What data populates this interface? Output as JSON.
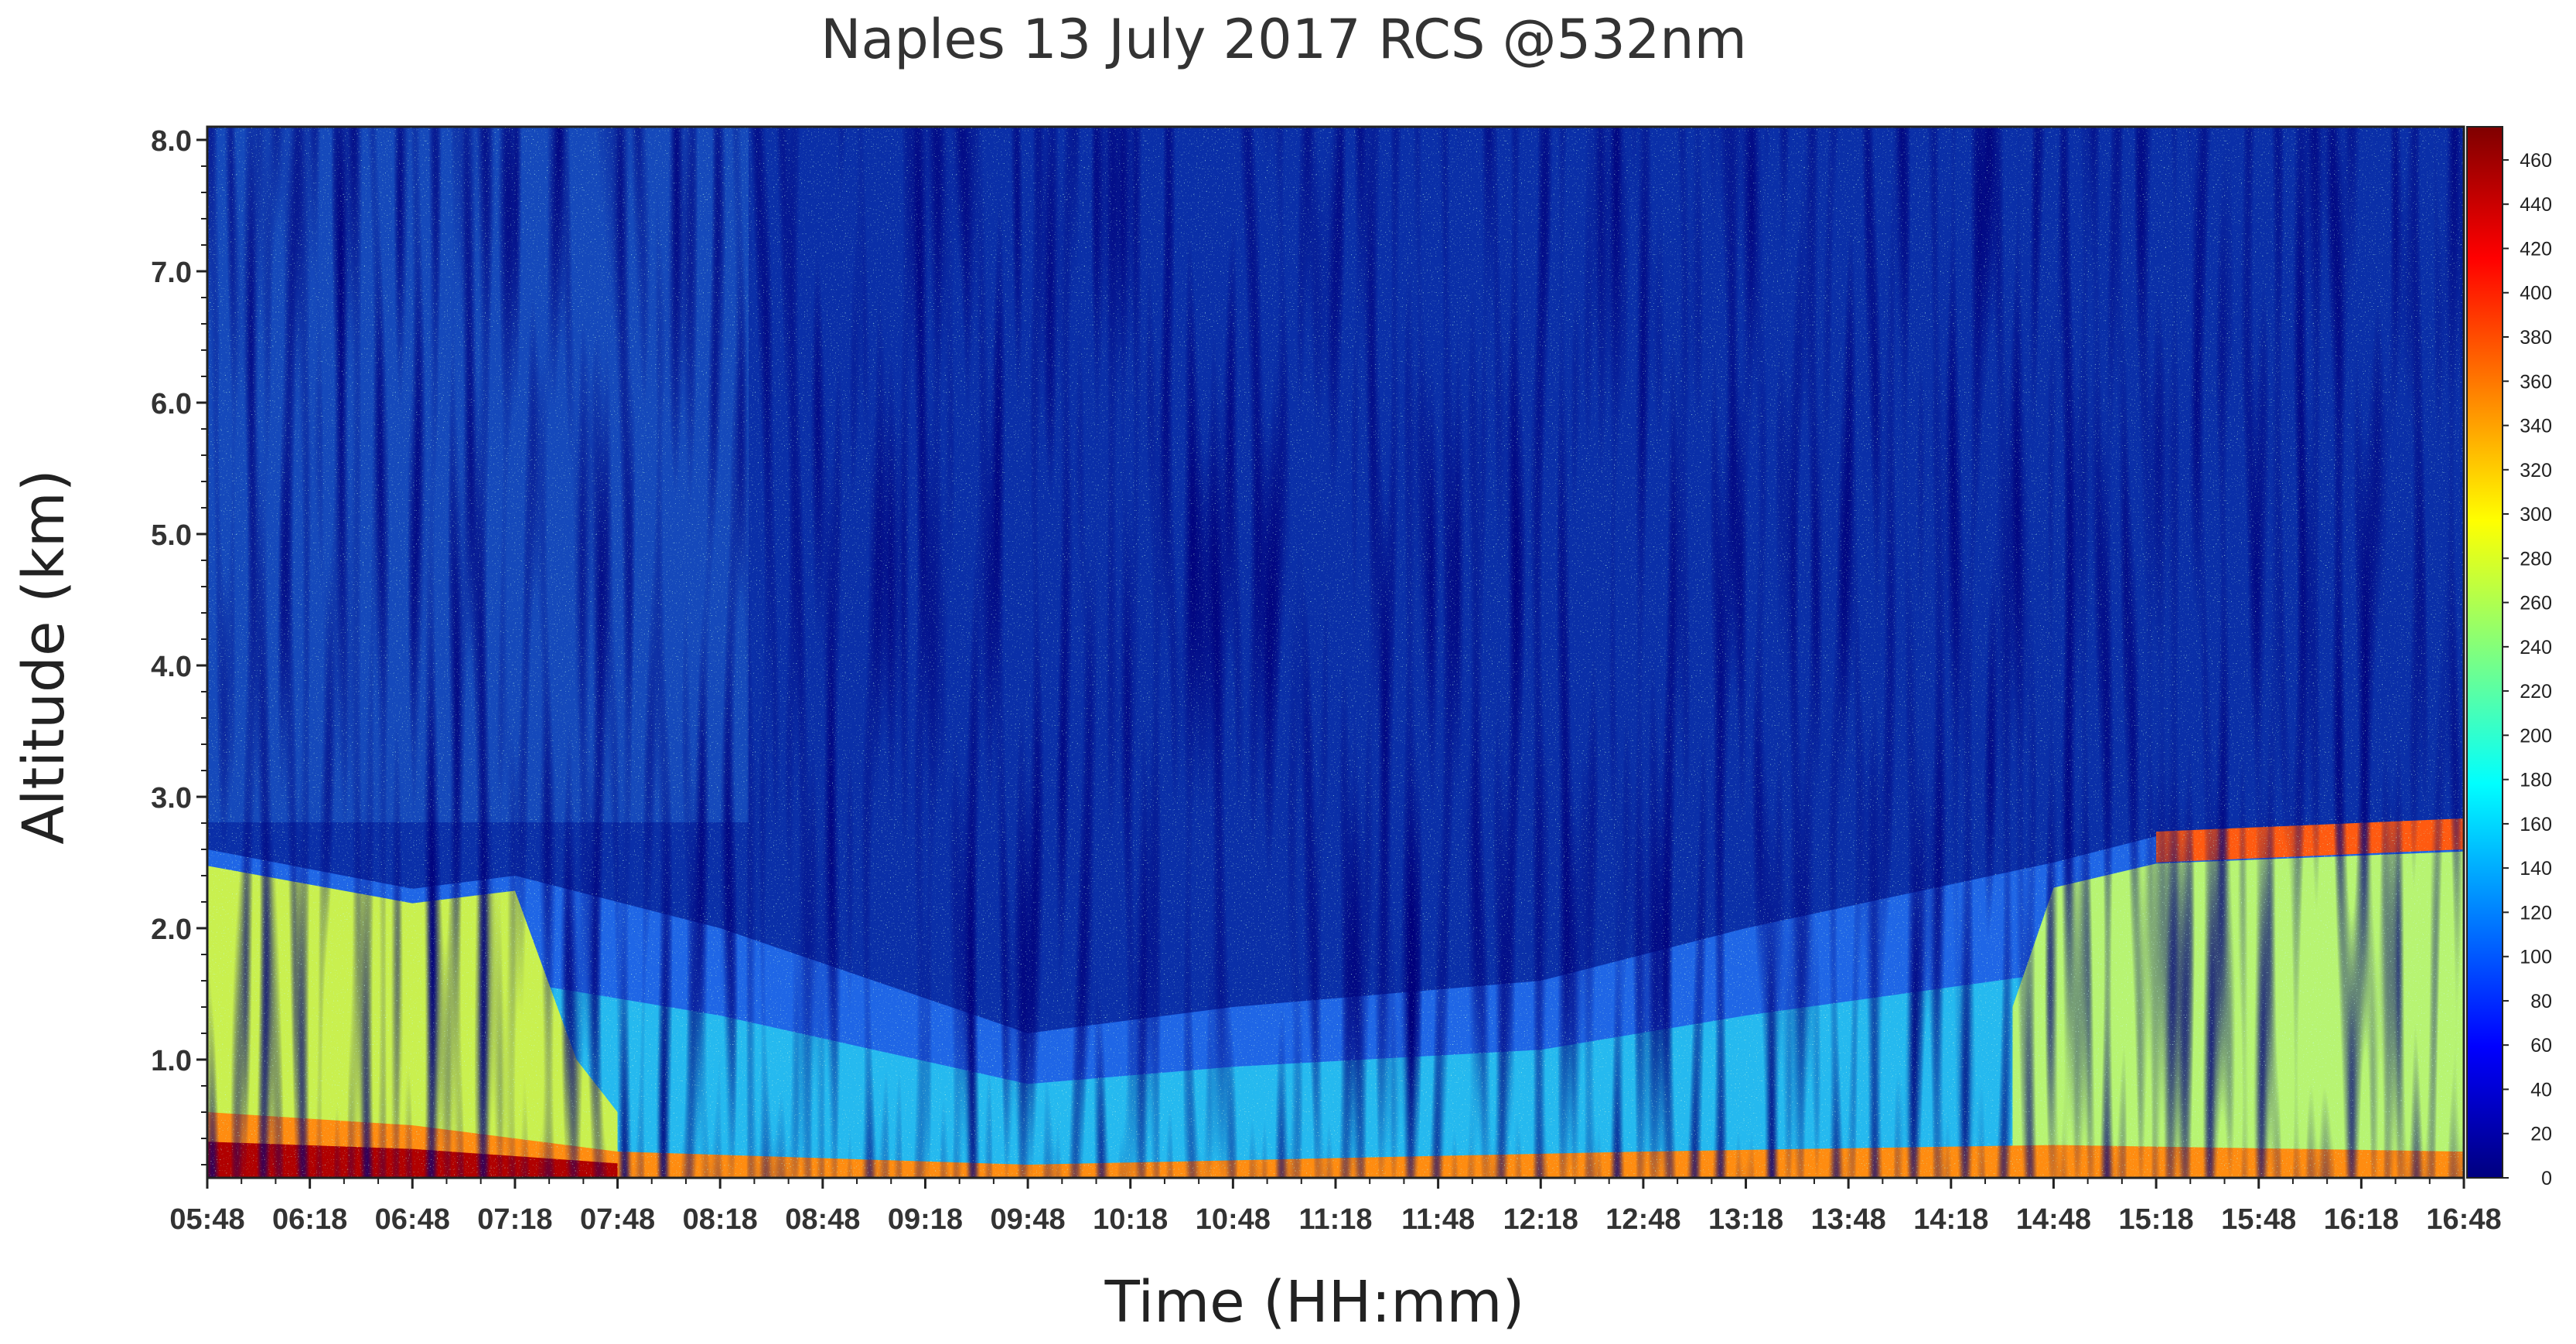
{
  "chart_data": {
    "type": "heatmap",
    "title": "Naples 13 July 2017  RCS @532nm",
    "xlabel": "Time (HH:mm)",
    "ylabel": "Altitude (km)",
    "x_ticks": [
      "05:48",
      "06:18",
      "06:48",
      "07:18",
      "07:48",
      "08:18",
      "08:48",
      "09:18",
      "09:48",
      "10:18",
      "10:48",
      "11:18",
      "11:48",
      "12:18",
      "12:48",
      "13:18",
      "13:48",
      "14:18",
      "14:48",
      "15:18",
      "15:48",
      "16:18",
      "16:48"
    ],
    "y_ticks": [
      "1.0",
      "2.0",
      "3.0",
      "4.0",
      "5.0",
      "6.0",
      "7.0",
      "8.0"
    ],
    "y_tick_values": [
      1,
      2,
      3,
      4,
      5,
      6,
      7,
      8
    ],
    "ylim": [
      0.1,
      8.1
    ],
    "colorbar_ticks": [
      "0",
      "20",
      "40",
      "60",
      "80",
      "100",
      "120",
      "140",
      "160",
      "180",
      "200",
      "220",
      "240",
      "260",
      "280",
      "300",
      "320",
      "340",
      "360",
      "380",
      "400",
      "420",
      "440",
      "460"
    ],
    "colorbar_values": [
      0,
      20,
      40,
      60,
      80,
      100,
      120,
      140,
      160,
      180,
      200,
      220,
      240,
      260,
      280,
      300,
      320,
      340,
      360,
      380,
      400,
      420,
      440,
      460
    ],
    "colorbar_range": [
      0,
      475
    ],
    "colormap": "jet",
    "colormap_stops": [
      "#00007f",
      "#0000ff",
      "#007fff",
      "#00ffff",
      "#7fff7f",
      "#ffff00",
      "#ff7f00",
      "#ff0000",
      "#7f0000"
    ],
    "layers": [
      {
        "feature": "boundary layer top",
        "times": [
          "05:48",
          "06:48",
          "07:18",
          "08:18",
          "09:48",
          "10:48",
          "12:18",
          "13:18",
          "14:48",
          "15:18",
          "16:48"
        ],
        "altitude_km": [
          2.6,
          2.3,
          2.4,
          2.0,
          1.2,
          1.4,
          1.6,
          2.0,
          2.5,
          2.7,
          2.8
        ]
      },
      {
        "feature": "surface layer top",
        "times": [
          "05:48",
          "06:48",
          "07:48",
          "09:48",
          "12:48",
          "14:48",
          "16:48"
        ],
        "altitude_km": [
          0.6,
          0.5,
          0.3,
          0.2,
          0.3,
          0.35,
          0.3
        ]
      }
    ]
  }
}
